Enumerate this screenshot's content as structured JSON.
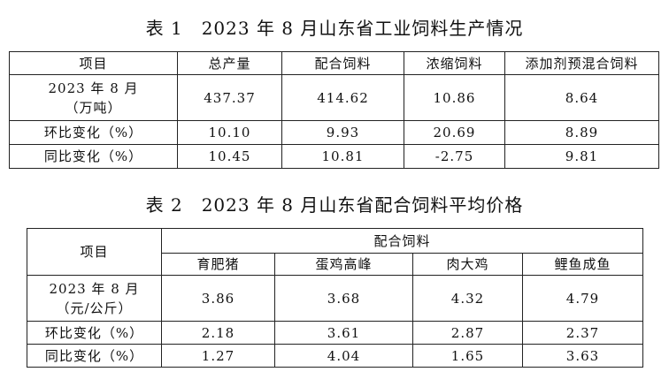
{
  "table1": {
    "title": "表 1　2023 年 8 月山东省工业饲料生产情况",
    "header": [
      "项目",
      "总产量",
      "配合饲料",
      "浓缩饲料",
      "添加剂预混合饲料"
    ],
    "rows": [
      [
        [
          "2023 年 8 月",
          "（万吨）"
        ],
        "437.37",
        "414.62",
        "10.86",
        "8.64"
      ],
      [
        [
          "环比变化（%）"
        ],
        "10.10",
        "9.93",
        "20.69",
        "8.89"
      ],
      [
        [
          "同比变化（%）"
        ],
        "10.45",
        "10.81",
        "-2.75",
        "9.81"
      ]
    ]
  },
  "table2": {
    "title": "表 2　2023 年 8 月山东省配合饲料平均价格",
    "header": [
      "项目",
      "配合饲料"
    ],
    "subheader": [
      "育肥猪",
      "蛋鸡高峰",
      "肉大鸡",
      "鲤鱼成鱼"
    ],
    "rows": [
      [
        [
          "2023 年 8 月",
          "（元/公斤）"
        ],
        "3.86",
        "3.68",
        "4.32",
        "4.79"
      ],
      [
        [
          "环比变化（%）"
        ],
        "2.18",
        "3.61",
        "2.87",
        "2.37"
      ],
      [
        [
          "同比变化（%）"
        ],
        "1.27",
        "4.04",
        "1.65",
        "3.63"
      ]
    ]
  }
}
